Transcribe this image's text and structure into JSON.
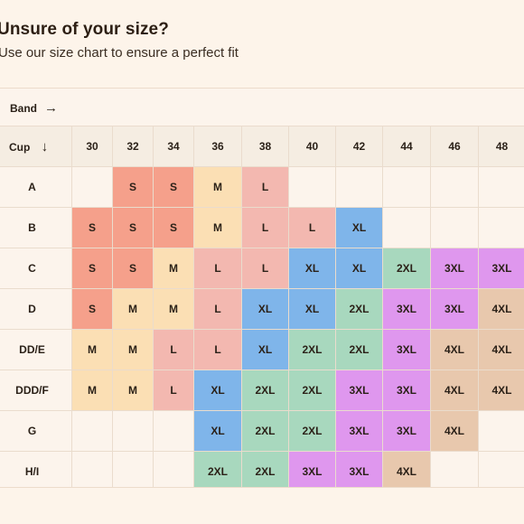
{
  "heading": {
    "title": "Unsure of your size?",
    "subtitle": "Use our size chart to ensure a perfect fit"
  },
  "band_header": {
    "label": "Band",
    "arrow": "→"
  },
  "cup_header": {
    "label": "Cup",
    "arrow": "↓"
  },
  "bands": [
    "30",
    "32",
    "34",
    "36",
    "38",
    "40",
    "42",
    "44",
    "46",
    "48"
  ],
  "rows": [
    {
      "cup": "A",
      "sizes": [
        "",
        "S",
        "S",
        "M",
        "L",
        "",
        "",
        "",
        "",
        ""
      ]
    },
    {
      "cup": "B",
      "sizes": [
        "S",
        "S",
        "S",
        "M",
        "L",
        "L",
        "XL",
        "",
        "",
        ""
      ]
    },
    {
      "cup": "C",
      "sizes": [
        "S",
        "S",
        "M",
        "L",
        "L",
        "XL",
        "XL",
        "2XL",
        "3XL",
        "3XL"
      ]
    },
    {
      "cup": "D",
      "sizes": [
        "S",
        "M",
        "M",
        "L",
        "XL",
        "XL",
        "2XL",
        "3XL",
        "3XL",
        "4XL"
      ]
    },
    {
      "cup": "DD/E",
      "sizes": [
        "M",
        "M",
        "L",
        "L",
        "XL",
        "2XL",
        "2XL",
        "3XL",
        "4XL",
        "4XL"
      ]
    },
    {
      "cup": "DDD/F",
      "sizes": [
        "M",
        "M",
        "L",
        "XL",
        "2XL",
        "2XL",
        "3XL",
        "3XL",
        "4XL",
        "4XL"
      ]
    },
    {
      "cup": "G",
      "sizes": [
        "",
        "",
        "",
        "XL",
        "2XL",
        "2XL",
        "3XL",
        "3XL",
        "4XL",
        ""
      ]
    },
    {
      "cup": "H/I",
      "sizes": [
        "",
        "",
        "",
        "2XL",
        "2XL",
        "3XL",
        "3XL",
        "4XL",
        "",
        ""
      ]
    }
  ],
  "colors": {
    "S": "#f5a08b",
    "M": "#fbdfb4",
    "L": "#f3b8b0",
    "XL": "#7fb5ea",
    "2XL": "#a8d8be",
    "3XL": "#df97ee",
    "4XL": "#e8c8ad"
  }
}
